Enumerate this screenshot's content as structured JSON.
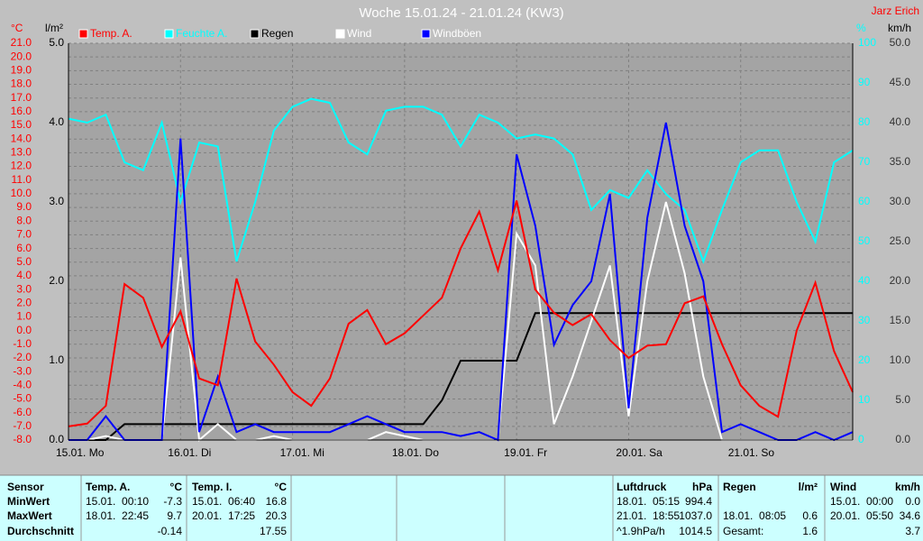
{
  "chart_data": {
    "type": "line",
    "title": "Woche 15.01.24 - 21.01.24 (KW3)",
    "author": "Jarz Erich",
    "unit_labels": {
      "temp": "°C",
      "rain": "l/m²",
      "humidity": "%",
      "wind": "km/h"
    },
    "xlim": [
      0,
      168
    ],
    "xticks": [
      {
        "value": 0,
        "label": "15.01. Mo"
      },
      {
        "value": 24,
        "label": "16.01. Di"
      },
      {
        "value": 48,
        "label": "17.01. Mi"
      },
      {
        "value": 72,
        "label": "18.01. Do"
      },
      {
        "value": 96,
        "label": "19.01. Fr"
      },
      {
        "value": 120,
        "label": "20.01. Sa"
      },
      {
        "value": 144,
        "label": "21.01. So"
      }
    ],
    "x": [
      0,
      4,
      8,
      12,
      16,
      20,
      24,
      28,
      32,
      36,
      40,
      44,
      48,
      52,
      56,
      60,
      64,
      68,
      72,
      76,
      80,
      84,
      88,
      92,
      96,
      100,
      104,
      108,
      112,
      116,
      120,
      124,
      128,
      132,
      136,
      140,
      144,
      148,
      152,
      156,
      160,
      164,
      168
    ],
    "ylim": [
      -8,
      21
    ],
    "yticks": [
      {
        "value": -8,
        "label": "-8.0"
      },
      {
        "value": -7,
        "label": "-7.0"
      },
      {
        "value": -6,
        "label": "-6.0"
      },
      {
        "value": -5,
        "label": "-5.0"
      },
      {
        "value": -4,
        "label": "-4.0"
      },
      {
        "value": -3,
        "label": "-3.0"
      },
      {
        "value": -2,
        "label": "-2.0"
      },
      {
        "value": -1,
        "label": "-1.0"
      },
      {
        "value": 0,
        "label": "0.0"
      },
      {
        "value": 1,
        "label": "1.0"
      },
      {
        "value": 2,
        "label": "2.0"
      },
      {
        "value": 3,
        "label": "3.0"
      },
      {
        "value": 4,
        "label": "4.0"
      },
      {
        "value": 5,
        "label": "5.0"
      },
      {
        "value": 6,
        "label": "6.0"
      },
      {
        "value": 7,
        "label": "7.0"
      },
      {
        "value": 8,
        "label": "8.0"
      },
      {
        "value": 9,
        "label": "9.0"
      },
      {
        "value": 10,
        "label": "10.0"
      },
      {
        "value": 11,
        "label": "11.0"
      },
      {
        "value": 12,
        "label": "12.0"
      },
      {
        "value": 13,
        "label": "13.0"
      },
      {
        "value": 14,
        "label": "14.0"
      },
      {
        "value": 15,
        "label": "15.0"
      },
      {
        "value": 16,
        "label": "16.0"
      },
      {
        "value": 17,
        "label": "17.0"
      },
      {
        "value": 18,
        "label": "18.0"
      },
      {
        "value": 19,
        "label": "19.0"
      },
      {
        "value": 20,
        "label": "20.0"
      },
      {
        "value": 21,
        "label": "21.0"
      }
    ],
    "rainlim": [
      0,
      5
    ],
    "rainticks": [
      {
        "value": 0,
        "label": "0.0"
      },
      {
        "value": 1,
        "label": "1.0"
      },
      {
        "value": 2,
        "label": "2.0"
      },
      {
        "value": 3,
        "label": "3.0"
      },
      {
        "value": 4,
        "label": "4.0"
      },
      {
        "value": 5,
        "label": "5.0"
      }
    ],
    "humiditylim": [
      0,
      100
    ],
    "humidityticks": [
      0,
      10,
      20,
      30,
      40,
      50,
      60,
      70,
      80,
      90,
      100
    ],
    "y2lim": [
      0,
      50
    ],
    "y2ticks": [
      {
        "value": 0,
        "label": "0.0"
      },
      {
        "value": 5,
        "label": "5.0"
      },
      {
        "value": 10,
        "label": "10.0"
      },
      {
        "value": 15,
        "label": "15.0"
      },
      {
        "value": 20,
        "label": "20.0"
      },
      {
        "value": 25,
        "label": "25.0"
      },
      {
        "value": 30,
        "label": "30.0"
      },
      {
        "value": 35,
        "label": "35.0"
      },
      {
        "value": 40,
        "label": "40.0"
      },
      {
        "value": 45,
        "label": "45.0"
      },
      {
        "value": 50,
        "label": "50.0"
      }
    ],
    "grid": true,
    "series": [
      {
        "name": "Temp. A.",
        "color": "#ff0000",
        "axis": "y",
        "values": [
          -7.0,
          -6.8,
          -5.5,
          3.4,
          2.4,
          -1.2,
          1.4,
          -3.5,
          -4.0,
          3.8,
          -0.8,
          -2.5,
          -4.5,
          -5.5,
          -3.5,
          0.5,
          1.5,
          -1.0,
          -0.2,
          1.1,
          2.4,
          6.0,
          8.7,
          4.4,
          9.5,
          3.0,
          1.3,
          0.4,
          1.2,
          -0.7,
          -2.0,
          -1.1,
          -1.0,
          2.0,
          2.5,
          -1.0,
          -4.0,
          -5.5,
          -6.3,
          0.0,
          3.5,
          -1.5,
          -4.5
        ]
      },
      {
        "name": "Feuchte A.",
        "color": "#00ffff",
        "axis": "humidity",
        "values": [
          81,
          80,
          82,
          70,
          68,
          80,
          60,
          75,
          74,
          45,
          60,
          78,
          84,
          86,
          85,
          75,
          72,
          83,
          84,
          84,
          82,
          74,
          82,
          80,
          76,
          77,
          76,
          72,
          58,
          63,
          61,
          68,
          62,
          58,
          45,
          58,
          70,
          73,
          73,
          60,
          50,
          70,
          73
        ]
      },
      {
        "name": "Regen",
        "color": "#000000",
        "axis": "rain",
        "values": [
          0,
          0,
          0,
          0.2,
          0.2,
          0.2,
          0.2,
          0.2,
          0.2,
          0.2,
          0.2,
          0.2,
          0.2,
          0.2,
          0.2,
          0.2,
          0.2,
          0.2,
          0.2,
          0.2,
          0.5,
          1.0,
          1.0,
          1.0,
          1.0,
          1.6,
          1.6,
          1.6,
          1.6,
          1.6,
          1.6,
          1.6,
          1.6,
          1.6,
          1.6,
          1.6,
          1.6,
          1.6,
          1.6,
          1.6,
          1.6,
          1.6,
          1.6
        ]
      },
      {
        "name": "Wind",
        "color": "#ffffff",
        "axis": "y2",
        "values": [
          0,
          0,
          0.5,
          0,
          0,
          0,
          23,
          0,
          2,
          0,
          0,
          0.5,
          0,
          0,
          0,
          0,
          0,
          1,
          0.5,
          0,
          0,
          0,
          0,
          0,
          26,
          22,
          2,
          8,
          15,
          22,
          3,
          20,
          30,
          21,
          8,
          0,
          0,
          0,
          0,
          0,
          0,
          0,
          0
        ]
      },
      {
        "name": "Windböen",
        "color": "#0000ff",
        "axis": "y2",
        "values": [
          0,
          0,
          3,
          0,
          0,
          0,
          38,
          1,
          8,
          1,
          2,
          1,
          1,
          1,
          1,
          2,
          3,
          2,
          1,
          1,
          1,
          0.5,
          1,
          0,
          36,
          27,
          12,
          17,
          20,
          31,
          4,
          28,
          40,
          27,
          20,
          1,
          2,
          1,
          0,
          0,
          1,
          0,
          1
        ]
      }
    ]
  },
  "table": {
    "header": [
      "Sensor",
      "Temp. A.",
      "°C",
      "Temp. I.",
      "°C",
      "Luftdruck",
      "hPa",
      "Regen",
      "l/m²",
      "Wind",
      "km/h"
    ],
    "rows": [
      [
        "MinWert",
        "15.01.  00:10",
        "-7.3",
        "15.01.  06:40",
        "16.8",
        "18.01.  05:15",
        "994.4",
        null,
        null,
        "15.01.  00:00",
        "0.0"
      ],
      [
        "MaxWert",
        "18.01.  22:45",
        "9.7",
        "20.01.  17:25",
        "20.3",
        "21.01.  18:55",
        "1037.0",
        "18.01.  08:05",
        "0.6",
        "20.01.  05:50",
        "34.6"
      ],
      [
        "Durchschnitt",
        null,
        "-0.14",
        null,
        "17.55",
        "^1.9hPa/h",
        "1014.5",
        "Gesamt:",
        "1.6",
        null,
        "3.7"
      ]
    ]
  }
}
